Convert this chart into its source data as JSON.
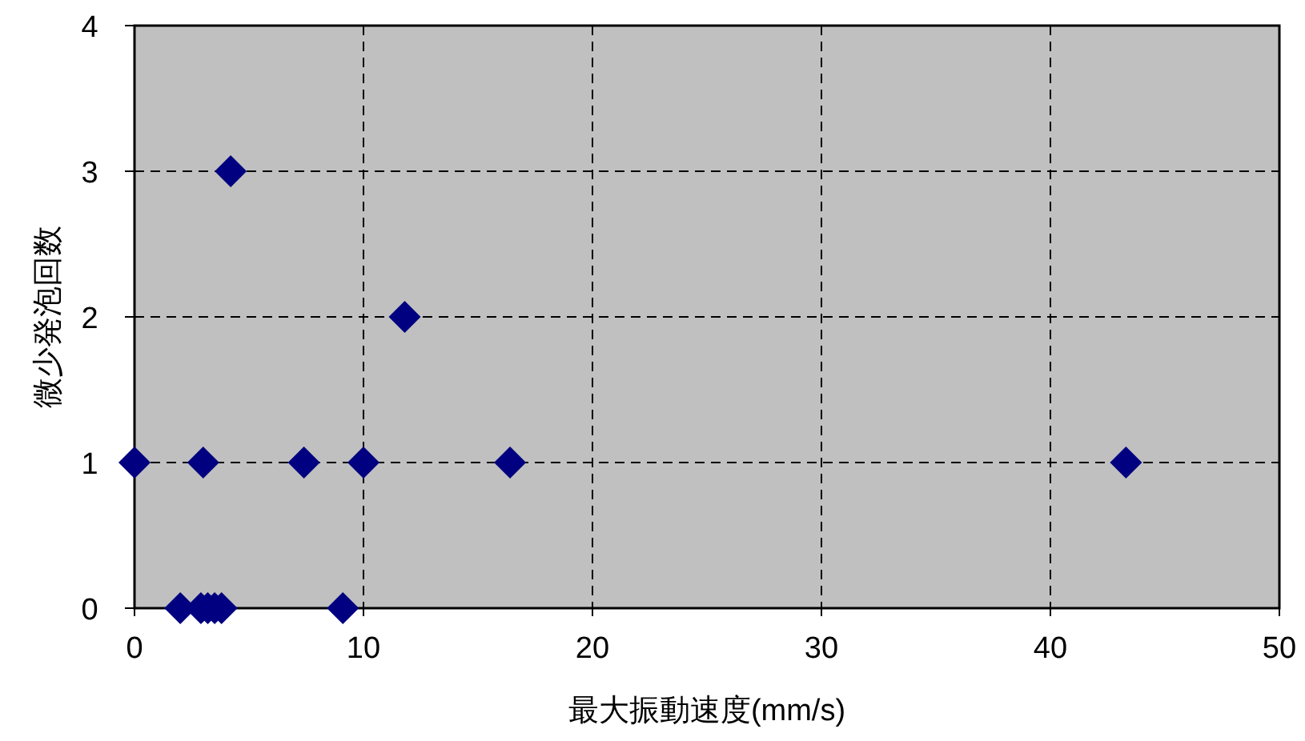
{
  "chart_data": {
    "type": "scatter",
    "xlabel": "最大振動速度(mm/s)",
    "ylabel": "微少発泡回数",
    "x": [
      0,
      3.0,
      7.4,
      10.0,
      16.4,
      43.3,
      4.2,
      11.8,
      2.0,
      2.9,
      3.2,
      3.5,
      3.8,
      9.1
    ],
    "values": [
      1,
      1,
      1,
      1,
      1,
      1,
      3,
      2,
      0,
      0,
      0,
      0,
      0,
      0
    ],
    "color": "#000080",
    "marker": "diamond",
    "xlim": [
      0,
      50
    ],
    "ylim": [
      0,
      4
    ],
    "xticks": [
      0,
      10,
      20,
      30,
      40,
      50
    ],
    "yticks": [
      0,
      1,
      2,
      3,
      4
    ],
    "grid": true
  }
}
